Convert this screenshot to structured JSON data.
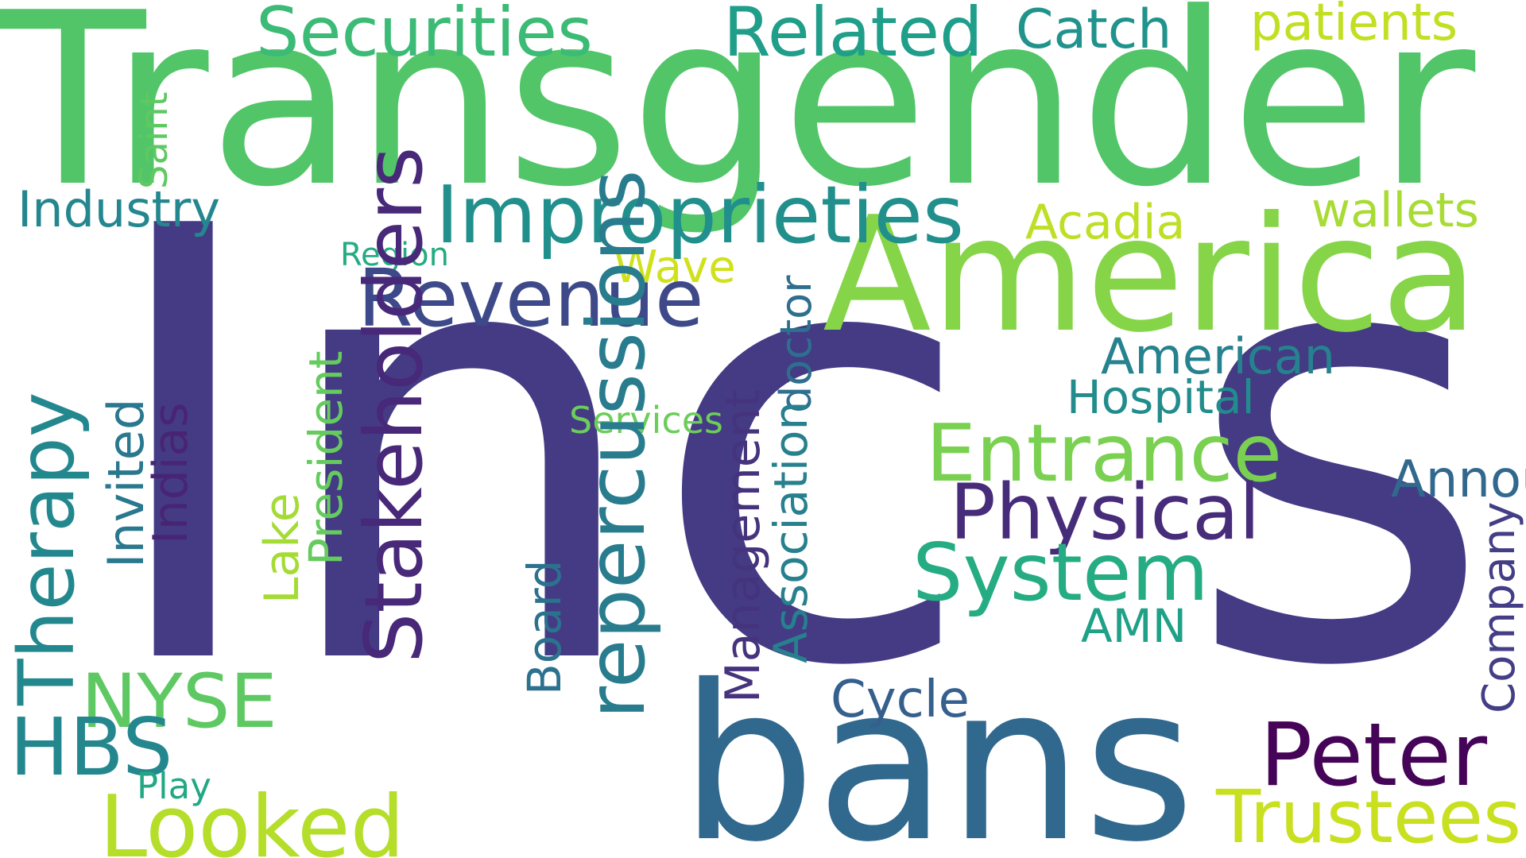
{
  "words": [
    {
      "text": "Inc",
      "color": "#443b84"
    },
    {
      "text": "s",
      "color": "#443b84"
    },
    {
      "text": "Transgender",
      "color": "#52c569"
    },
    {
      "text": "America",
      "color": "#86d549"
    },
    {
      "text": "bans",
      "color": "#31688e"
    },
    {
      "text": "Securities",
      "color": "#3bbb75"
    },
    {
      "text": "Related",
      "color": "#1f9e89"
    },
    {
      "text": "Catch",
      "color": "#20938c"
    },
    {
      "text": "patients",
      "color": "#c2df23"
    },
    {
      "text": "Industry",
      "color": "#24868e"
    },
    {
      "text": "Improprieties",
      "color": "#21908d"
    },
    {
      "text": "Acadia",
      "color": "#bddf26"
    },
    {
      "text": "wallets",
      "color": "#a8db34"
    },
    {
      "text": "Region",
      "color": "#25ab82"
    },
    {
      "text": "Wave",
      "color": "#d0e11c"
    },
    {
      "text": "Revenue",
      "color": "#3e4989"
    },
    {
      "text": "American",
      "color": "#26828e"
    },
    {
      "text": "Hospital",
      "color": "#228c8d"
    },
    {
      "text": "Services",
      "color": "#6ccd5a"
    },
    {
      "text": "Entrance",
      "color": "#7ad151"
    },
    {
      "text": "Announces",
      "color": "#31688e"
    },
    {
      "text": "Physical",
      "color": "#472c7a"
    },
    {
      "text": "System",
      "color": "#25ac82"
    },
    {
      "text": "AMN",
      "color": "#1fa187"
    },
    {
      "text": "NYSE",
      "color": "#5ec962"
    },
    {
      "text": "Cycle",
      "color": "#355f8d"
    },
    {
      "text": "HBS",
      "color": "#24878e"
    },
    {
      "text": "Peter",
      "color": "#450457"
    },
    {
      "text": "Play",
      "color": "#22a884"
    },
    {
      "text": "Looked",
      "color": "#b5de2b"
    },
    {
      "text": "Trustees",
      "color": "#c8e020"
    },
    {
      "text": "Saint",
      "color": "#5ec962"
    },
    {
      "text": "Therapy",
      "color": "#23888e"
    },
    {
      "text": "Invited",
      "color": "#2a788e"
    },
    {
      "text": "Indias",
      "color": "#482475"
    },
    {
      "text": "Lake",
      "color": "#a5db36"
    },
    {
      "text": "President",
      "color": "#65cb5e"
    },
    {
      "text": "Stakeholders",
      "color": "#482878"
    },
    {
      "text": "doctor",
      "color": "#2e6e8e"
    },
    {
      "text": "repercussions",
      "color": "#287c8e"
    },
    {
      "text": "Board",
      "color": "#2c728e"
    },
    {
      "text": "Management",
      "color": "#46337e"
    },
    {
      "text": "Association",
      "color": "#27808e"
    },
    {
      "text": "Company",
      "color": "#433e85"
    }
  ]
}
